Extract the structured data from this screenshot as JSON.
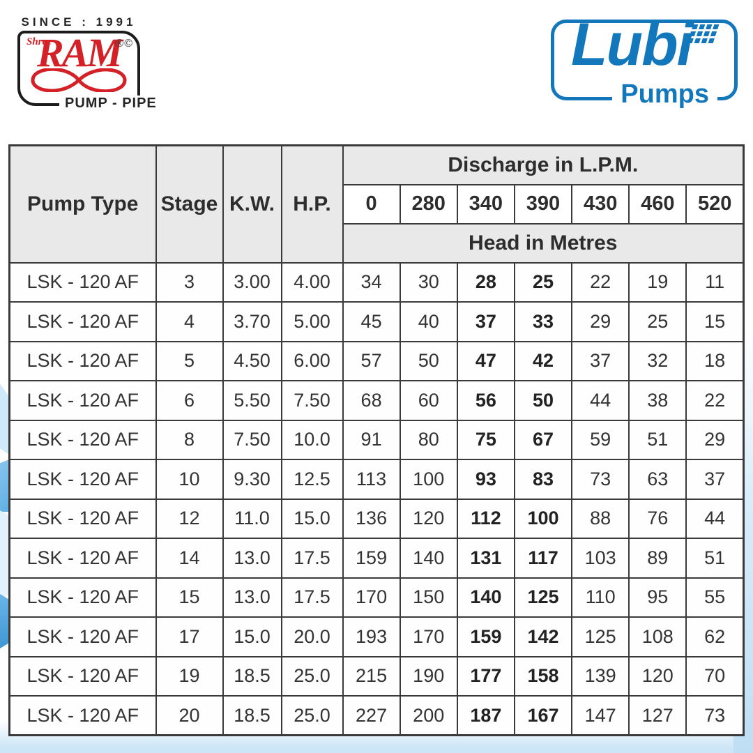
{
  "branding": {
    "since_text": "SINCE : 1991",
    "shree": "Shree",
    "ram": "RAM",
    "reg_marks": "®©",
    "pump_pipe": "PUMP - PIPE",
    "ram_red": "#d42027",
    "lubi": "Lubi",
    "pumps": "Pumps",
    "lubi_blue": "#1377bb"
  },
  "table": {
    "columns": {
      "pump_type": "Pump Type",
      "stage": "Stage",
      "kw": "K.W.",
      "hp": "H.P."
    },
    "discharge_title": "Discharge in L.P.M.",
    "discharge_values": [
      "0",
      "280",
      "340",
      "390",
      "430",
      "460",
      "520"
    ],
    "head_title": "Head in Metres",
    "bold_discharge_indices": [
      2,
      3
    ],
    "header_bg": "#e9e9e9",
    "rows": [
      {
        "pump_type": "LSK - 120 AF",
        "stage": "3",
        "kw": "3.00",
        "hp": "4.00",
        "heads": [
          "34",
          "30",
          "28",
          "25",
          "22",
          "19",
          "11"
        ]
      },
      {
        "pump_type": "LSK - 120 AF",
        "stage": "4",
        "kw": "3.70",
        "hp": "5.00",
        "heads": [
          "45",
          "40",
          "37",
          "33",
          "29",
          "25",
          "15"
        ]
      },
      {
        "pump_type": "LSK - 120 AF",
        "stage": "5",
        "kw": "4.50",
        "hp": "6.00",
        "heads": [
          "57",
          "50",
          "47",
          "42",
          "37",
          "32",
          "18"
        ]
      },
      {
        "pump_type": "LSK - 120 AF",
        "stage": "6",
        "kw": "5.50",
        "hp": "7.50",
        "heads": [
          "68",
          "60",
          "56",
          "50",
          "44",
          "38",
          "22"
        ]
      },
      {
        "pump_type": "LSK - 120 AF",
        "stage": "8",
        "kw": "7.50",
        "hp": "10.0",
        "heads": [
          "91",
          "80",
          "75",
          "67",
          "59",
          "51",
          "29"
        ]
      },
      {
        "pump_type": "LSK - 120 AF",
        "stage": "10",
        "kw": "9.30",
        "hp": "12.5",
        "heads": [
          "113",
          "100",
          "93",
          "83",
          "73",
          "63",
          "37"
        ]
      },
      {
        "pump_type": "LSK - 120 AF",
        "stage": "12",
        "kw": "11.0",
        "hp": "15.0",
        "heads": [
          "136",
          "120",
          "112",
          "100",
          "88",
          "76",
          "44"
        ]
      },
      {
        "pump_type": "LSK - 120 AF",
        "stage": "14",
        "kw": "13.0",
        "hp": "17.5",
        "heads": [
          "159",
          "140",
          "131",
          "117",
          "103",
          "89",
          "51"
        ]
      },
      {
        "pump_type": "LSK - 120 AF",
        "stage": "15",
        "kw": "13.0",
        "hp": "17.5",
        "heads": [
          "170",
          "150",
          "140",
          "125",
          "110",
          "95",
          "55"
        ]
      },
      {
        "pump_type": "LSK - 120 AF",
        "stage": "17",
        "kw": "15.0",
        "hp": "20.0",
        "heads": [
          "193",
          "170",
          "159",
          "142",
          "125",
          "108",
          "62"
        ]
      },
      {
        "pump_type": "LSK - 120 AF",
        "stage": "19",
        "kw": "18.5",
        "hp": "25.0",
        "heads": [
          "215",
          "190",
          "177",
          "158",
          "139",
          "120",
          "70"
        ]
      },
      {
        "pump_type": "LSK - 120 AF",
        "stage": "20",
        "kw": "18.5",
        "hp": "25.0",
        "heads": [
          "227",
          "200",
          "187",
          "167",
          "147",
          "127",
          "73"
        ]
      }
    ]
  }
}
